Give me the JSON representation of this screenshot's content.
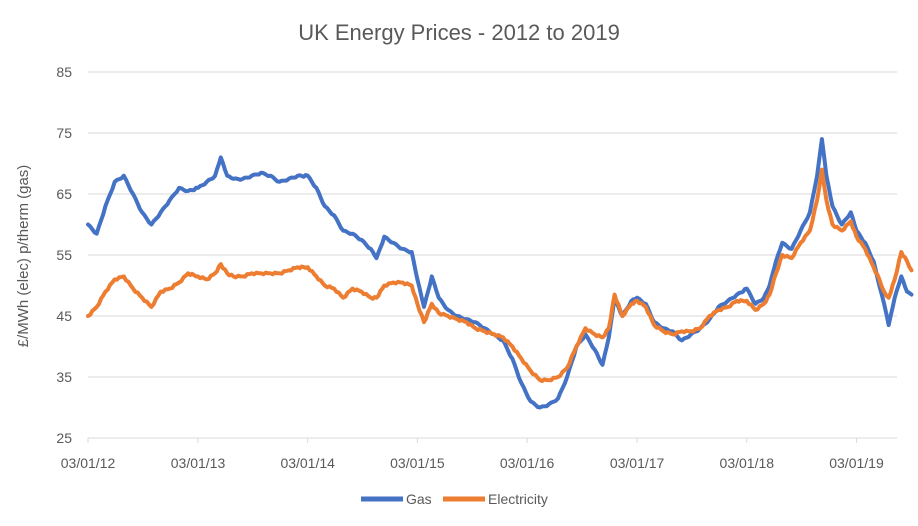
{
  "chart_data": {
    "type": "line",
    "title": "UK Energy Prices - 2012 to 2019",
    "xlabel": "",
    "ylabel": "£/MWh (elec) p/therm (gas)",
    "ylim": [
      25,
      85
    ],
    "yticks": [
      "85",
      "75",
      "65",
      "55",
      "45",
      "35",
      "25"
    ],
    "xticks": [
      "03/01/12",
      "03/01/13",
      "03/01/14",
      "03/01/15",
      "03/01/16",
      "03/01/17",
      "03/01/18",
      "03/01/19"
    ],
    "grid": true,
    "legend_position": "bottom",
    "series": [
      {
        "name": "Gas",
        "color": "#4472C4",
        "points": [
          [
            "2012-01-03",
            60
          ],
          [
            "2012-02-01",
            58.5
          ],
          [
            "2012-03-01",
            63
          ],
          [
            "2012-04-01",
            67
          ],
          [
            "2012-05-01",
            68
          ],
          [
            "2012-06-01",
            65
          ],
          [
            "2012-07-01",
            62
          ],
          [
            "2012-08-01",
            60
          ],
          [
            "2012-09-01",
            62
          ],
          [
            "2012-10-01",
            64
          ],
          [
            "2012-11-01",
            66
          ],
          [
            "2012-12-01",
            65.5
          ],
          [
            "2013-01-03",
            66
          ],
          [
            "2013-02-01",
            67
          ],
          [
            "2013-03-01",
            68
          ],
          [
            "2013-03-20",
            71
          ],
          [
            "2013-04-10",
            68
          ],
          [
            "2013-05-01",
            67.5
          ],
          [
            "2013-06-01",
            67.5
          ],
          [
            "2013-07-01",
            68
          ],
          [
            "2013-08-01",
            68.5
          ],
          [
            "2013-09-01",
            68
          ],
          [
            "2013-10-01",
            67
          ],
          [
            "2013-11-01",
            67.5
          ],
          [
            "2013-12-01",
            68
          ],
          [
            "2014-01-03",
            68
          ],
          [
            "2014-02-01",
            66
          ],
          [
            "2014-03-01",
            63
          ],
          [
            "2014-04-01",
            61.5
          ],
          [
            "2014-05-01",
            59
          ],
          [
            "2014-06-01",
            58.5
          ],
          [
            "2014-07-01",
            57.5
          ],
          [
            "2014-08-01",
            56
          ],
          [
            "2014-08-20",
            54.5
          ],
          [
            "2014-09-15",
            58
          ],
          [
            "2014-10-15",
            57
          ],
          [
            "2014-11-15",
            56
          ],
          [
            "2014-12-15",
            55.5
          ],
          [
            "2015-01-03",
            51
          ],
          [
            "2015-01-25",
            46.5
          ],
          [
            "2015-02-20",
            51.5
          ],
          [
            "2015-03-15",
            48
          ],
          [
            "2015-04-15",
            46
          ],
          [
            "2015-05-15",
            45
          ],
          [
            "2015-06-15",
            44.5
          ],
          [
            "2015-07-15",
            44
          ],
          [
            "2015-08-15",
            43
          ],
          [
            "2015-09-15",
            42
          ],
          [
            "2015-10-15",
            41
          ],
          [
            "2015-11-15",
            38
          ],
          [
            "2015-12-15",
            34
          ],
          [
            "2016-01-15",
            31
          ],
          [
            "2016-02-15",
            30
          ],
          [
            "2016-03-15",
            30.5
          ],
          [
            "2016-04-15",
            31.5
          ],
          [
            "2016-05-15",
            35
          ],
          [
            "2016-06-15",
            40
          ],
          [
            "2016-07-15",
            42
          ],
          [
            "2016-08-15",
            39.5
          ],
          [
            "2016-09-10",
            37
          ],
          [
            "2016-10-01",
            41.5
          ],
          [
            "2016-10-20",
            48
          ],
          [
            "2016-11-15",
            45
          ],
          [
            "2016-12-15",
            47.5
          ],
          [
            "2017-01-03",
            48
          ],
          [
            "2017-02-01",
            47
          ],
          [
            "2017-03-01",
            44
          ],
          [
            "2017-04-01",
            43
          ],
          [
            "2017-05-01",
            42.5
          ],
          [
            "2017-06-01",
            41
          ],
          [
            "2017-07-01",
            42
          ],
          [
            "2017-08-01",
            43
          ],
          [
            "2017-09-01",
            44.5
          ],
          [
            "2017-10-01",
            46.5
          ],
          [
            "2017-11-01",
            47.5
          ],
          [
            "2017-12-01",
            48.5
          ],
          [
            "2018-01-03",
            49.5
          ],
          [
            "2018-02-01",
            47
          ],
          [
            "2018-03-01",
            48
          ],
          [
            "2018-03-20",
            50
          ],
          [
            "2018-04-10",
            54
          ],
          [
            "2018-05-01",
            57
          ],
          [
            "2018-06-01",
            56
          ],
          [
            "2018-07-01",
            59
          ],
          [
            "2018-08-01",
            62
          ],
          [
            "2018-08-25",
            68
          ],
          [
            "2018-09-10",
            74
          ],
          [
            "2018-09-25",
            68
          ],
          [
            "2018-10-15",
            63
          ],
          [
            "2018-11-15",
            60
          ],
          [
            "2018-12-15",
            62
          ],
          [
            "2019-01-03",
            59
          ],
          [
            "2019-02-01",
            57
          ],
          [
            "2019-03-01",
            54
          ],
          [
            "2019-03-20",
            50
          ],
          [
            "2019-04-05",
            47
          ],
          [
            "2019-04-20",
            43.5
          ],
          [
            "2019-05-10",
            48
          ],
          [
            "2019-06-01",
            51.5
          ],
          [
            "2019-06-20",
            49
          ],
          [
            "2019-07-05",
            48.5
          ]
        ]
      },
      {
        "name": "Electricity",
        "color": "#ED7D31",
        "points": [
          [
            "2012-01-03",
            45
          ],
          [
            "2012-02-01",
            46.5
          ],
          [
            "2012-03-01",
            49
          ],
          [
            "2012-04-01",
            51
          ],
          [
            "2012-05-01",
            51.5
          ],
          [
            "2012-06-01",
            49.5
          ],
          [
            "2012-07-01",
            48
          ],
          [
            "2012-08-01",
            46.5
          ],
          [
            "2012-09-01",
            49
          ],
          [
            "2012-10-01",
            49.5
          ],
          [
            "2012-11-01",
            50.5
          ],
          [
            "2012-12-01",
            52
          ],
          [
            "2013-01-03",
            51.5
          ],
          [
            "2013-02-01",
            51
          ],
          [
            "2013-03-01",
            52
          ],
          [
            "2013-03-20",
            53.5
          ],
          [
            "2013-04-10",
            52
          ],
          [
            "2013-05-01",
            51.5
          ],
          [
            "2013-06-01",
            51.5
          ],
          [
            "2013-07-01",
            52
          ],
          [
            "2013-08-01",
            52
          ],
          [
            "2013-09-01",
            52
          ],
          [
            "2013-10-01",
            52
          ],
          [
            "2013-11-01",
            52.5
          ],
          [
            "2013-12-01",
            53
          ],
          [
            "2014-01-03",
            53
          ],
          [
            "2014-02-01",
            51.5
          ],
          [
            "2014-03-01",
            50
          ],
          [
            "2014-04-01",
            49.5
          ],
          [
            "2014-05-01",
            48
          ],
          [
            "2014-06-01",
            49.5
          ],
          [
            "2014-07-01",
            49
          ],
          [
            "2014-08-01",
            48
          ],
          [
            "2014-08-20",
            48
          ],
          [
            "2014-09-15",
            50
          ],
          [
            "2014-10-15",
            50.5
          ],
          [
            "2014-11-15",
            50.5
          ],
          [
            "2014-12-15",
            50
          ],
          [
            "2015-01-03",
            47
          ],
          [
            "2015-01-25",
            44
          ],
          [
            "2015-02-20",
            47
          ],
          [
            "2015-03-15",
            45.5
          ],
          [
            "2015-04-15",
            45
          ],
          [
            "2015-05-15",
            44.5
          ],
          [
            "2015-06-15",
            44
          ],
          [
            "2015-07-15",
            43
          ],
          [
            "2015-08-15",
            42.5
          ],
          [
            "2015-09-15",
            42
          ],
          [
            "2015-10-15",
            41.5
          ],
          [
            "2015-11-15",
            40
          ],
          [
            "2015-12-15",
            38
          ],
          [
            "2016-01-15",
            36
          ],
          [
            "2016-02-15",
            34.5
          ],
          [
            "2016-03-15",
            34.5
          ],
          [
            "2016-04-15",
            35
          ],
          [
            "2016-05-15",
            36.5
          ],
          [
            "2016-06-15",
            40
          ],
          [
            "2016-07-15",
            43
          ],
          [
            "2016-08-15",
            42
          ],
          [
            "2016-09-10",
            41.5
          ],
          [
            "2016-10-01",
            43
          ],
          [
            "2016-10-20",
            48.5
          ],
          [
            "2016-11-15",
            45
          ],
          [
            "2016-12-15",
            47
          ],
          [
            "2017-01-03",
            47.5
          ],
          [
            "2017-02-01",
            46.5
          ],
          [
            "2017-03-01",
            43.5
          ],
          [
            "2017-04-01",
            42.5
          ],
          [
            "2017-05-01",
            42
          ],
          [
            "2017-06-01",
            42.5
          ],
          [
            "2017-07-01",
            42.5
          ],
          [
            "2017-08-01",
            43
          ],
          [
            "2017-09-01",
            45
          ],
          [
            "2017-10-01",
            46
          ],
          [
            "2017-11-01",
            46.5
          ],
          [
            "2017-12-01",
            47.5
          ],
          [
            "2018-01-03",
            47.5
          ],
          [
            "2018-02-01",
            46
          ],
          [
            "2018-03-01",
            47
          ],
          [
            "2018-03-20",
            48.5
          ],
          [
            "2018-04-10",
            52
          ],
          [
            "2018-05-01",
            55
          ],
          [
            "2018-06-01",
            54.5
          ],
          [
            "2018-07-01",
            57
          ],
          [
            "2018-08-01",
            59
          ],
          [
            "2018-08-25",
            64
          ],
          [
            "2018-09-10",
            69
          ],
          [
            "2018-09-25",
            64
          ],
          [
            "2018-10-15",
            60
          ],
          [
            "2018-11-15",
            59
          ],
          [
            "2018-12-15",
            60.5
          ],
          [
            "2019-01-03",
            58
          ],
          [
            "2019-02-01",
            56
          ],
          [
            "2019-03-01",
            53
          ],
          [
            "2019-03-20",
            51
          ],
          [
            "2019-04-05",
            49
          ],
          [
            "2019-04-20",
            48
          ],
          [
            "2019-05-10",
            51
          ],
          [
            "2019-06-01",
            55.5
          ],
          [
            "2019-06-20",
            54
          ],
          [
            "2019-07-05",
            52.5
          ]
        ]
      }
    ]
  }
}
